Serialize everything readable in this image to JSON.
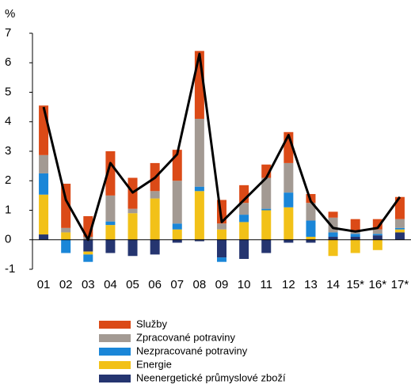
{
  "chart_data": {
    "type": "bar",
    "stacked": true,
    "y_label": "%",
    "categories": [
      "01",
      "02",
      "03",
      "04",
      "05",
      "06",
      "07",
      "08",
      "09",
      "10",
      "11",
      "12",
      "13",
      "14",
      "15*",
      "16*",
      "17*"
    ],
    "series": [
      {
        "name": "Neenergetické průmyslové zboží",
        "color": "#253570",
        "values": [
          0.18,
          0,
          -0.4,
          -0.45,
          -0.55,
          -0.5,
          -0.1,
          -0.05,
          -0.6,
          -0.65,
          -0.45,
          -0.1,
          -0.1,
          0.1,
          0.1,
          0.15,
          0.25
        ]
      },
      {
        "name": "Energie",
        "color": "#f2c118",
        "values": [
          1.35,
          0.25,
          -0.1,
          0.5,
          0.9,
          1.4,
          0.35,
          1.65,
          0.35,
          0.6,
          1.0,
          1.1,
          0.1,
          -0.55,
          -0.45,
          -0.35,
          0.1
        ]
      },
      {
        "name": "Nezpracované potraviny",
        "color": "#1a86d8",
        "values": [
          0.72,
          -0.45,
          -0.25,
          0.12,
          0,
          0,
          0.2,
          0.15,
          -0.15,
          0.25,
          0.05,
          0.5,
          0.55,
          0.15,
          0.1,
          0.05,
          0.05
        ]
      },
      {
        "name": "Zpracované potraviny",
        "color": "#a39a93",
        "values": [
          0.62,
          0.15,
          0.1,
          0.88,
          0.15,
          0.25,
          1.45,
          2.3,
          0.2,
          0.4,
          1.05,
          1.0,
          0.6,
          0.5,
          0.1,
          0.15,
          0.3
        ]
      },
      {
        "name": "Služby",
        "color": "#db4a17",
        "values": [
          1.68,
          1.5,
          0.7,
          1.5,
          1.05,
          0.95,
          1.05,
          2.3,
          0.8,
          0.6,
          0.45,
          1.05,
          0.3,
          0.2,
          0.4,
          0.35,
          0.75
        ]
      }
    ],
    "line": {
      "color": "#000000",
      "values": [
        4.5,
        1.35,
        0,
        2.6,
        1.6,
        2.1,
        2.9,
        6.3,
        0.6,
        1.35,
        2.1,
        3.55,
        1.3,
        0.4,
        0.28,
        0.4,
        1.45
      ]
    },
    "ylim": [
      -1,
      7
    ],
    "yticks": [
      -1,
      0,
      1,
      2,
      3,
      4,
      5,
      6,
      7
    ]
  }
}
